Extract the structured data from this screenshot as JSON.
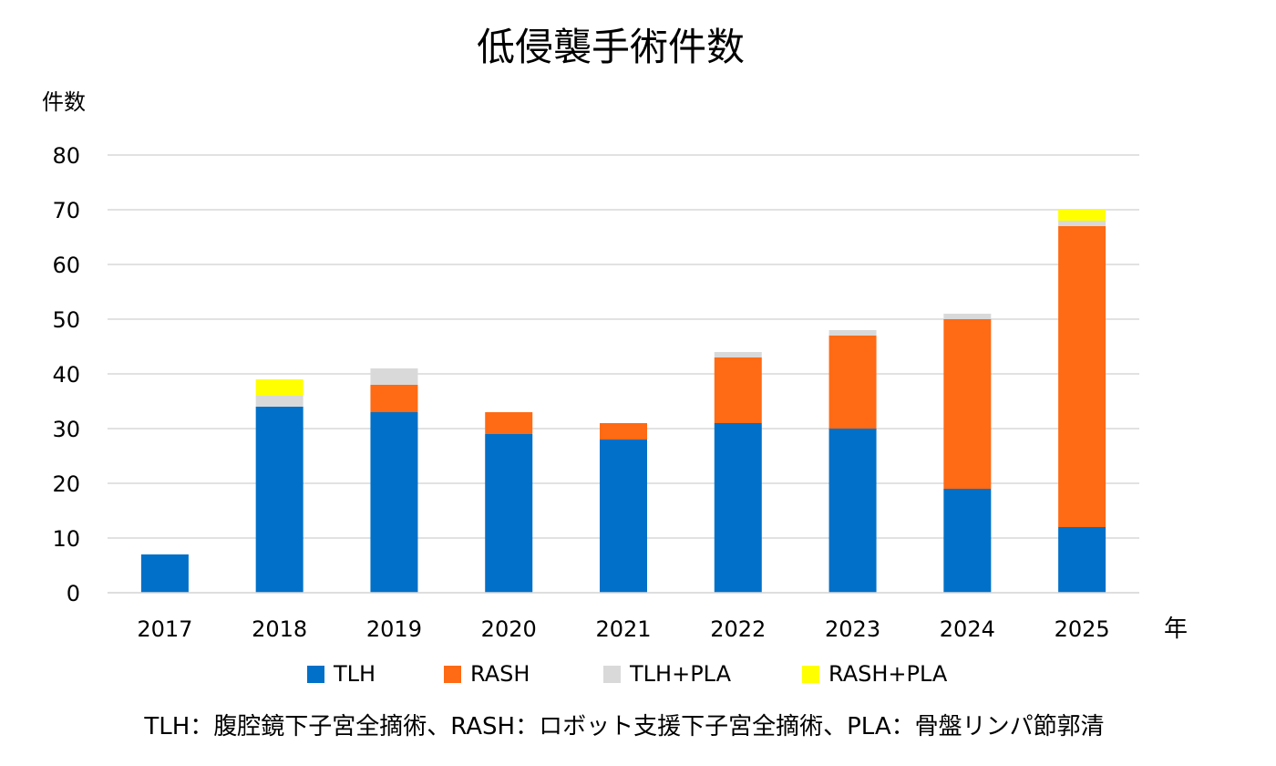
{
  "chart_data": {
    "type": "bar",
    "stacked": true,
    "title": "低侵襲手術件数",
    "ylabel": "件数",
    "xlabel": "年",
    "ylim": [
      0,
      80
    ],
    "yticks": [
      0,
      10,
      20,
      30,
      40,
      50,
      60,
      70,
      80
    ],
    "grid": true,
    "legend_position": "bottom",
    "categories": [
      "2017",
      "2018",
      "2019",
      "2020",
      "2021",
      "2022",
      "2023",
      "2024",
      "2025"
    ],
    "series": [
      {
        "name": "TLH",
        "color": "#0070C8",
        "values": [
          7,
          34,
          33,
          29,
          28,
          31,
          30,
          19,
          12
        ]
      },
      {
        "name": "RASH",
        "color": "#FF6A14",
        "values": [
          0,
          0,
          5,
          4,
          3,
          12,
          17,
          31,
          55
        ]
      },
      {
        "name": "TLH+PLA",
        "color": "#D9D9D9",
        "values": [
          0,
          2,
          3,
          0,
          0,
          1,
          1,
          1,
          1
        ]
      },
      {
        "name": "RASH+PLA",
        "color": "#FFFF00",
        "values": [
          0,
          3,
          0,
          0,
          0,
          0,
          0,
          0,
          2
        ]
      }
    ],
    "footnote": "TLH：腹腔鏡下子宮全摘術、RASH：ロボット支援下子宮全摘術、PLA：骨盤リンパ節郭清"
  }
}
